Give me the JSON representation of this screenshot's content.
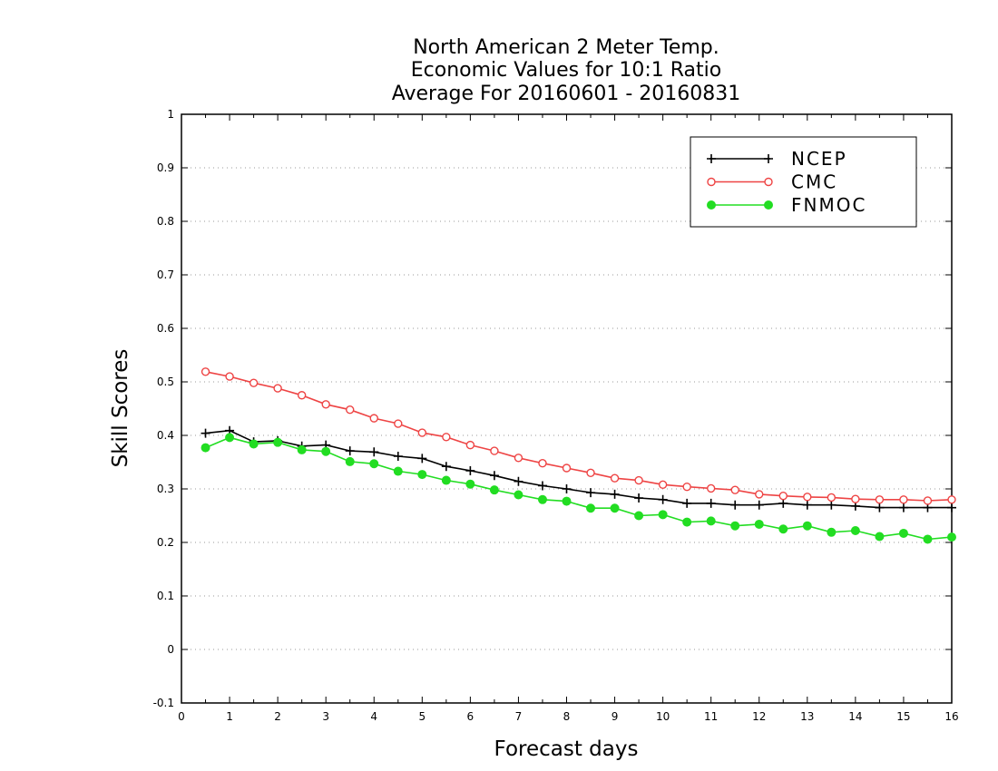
{
  "chart_data": {
    "type": "line",
    "title": [
      "North American 2 Meter Temp.",
      "Economic Values for 10:1 Ratio",
      "Average For 20160601 - 20160831"
    ],
    "xlabel": "Forecast days",
    "ylabel": "Skill Scores",
    "xlim": [
      0,
      16
    ],
    "ylim": [
      -0.1,
      1
    ],
    "xticks": [
      "0",
      "1",
      "2",
      "3",
      "4",
      "5",
      "6",
      "7",
      "8",
      "9",
      "10",
      "11",
      "12",
      "13",
      "14",
      "15",
      "16"
    ],
    "yticks": [
      "-0.1",
      "0",
      "0.1",
      "0.2",
      "0.3",
      "0.4",
      "0.5",
      "0.6",
      "0.7",
      "0.8",
      "0.9",
      "1"
    ],
    "grid": "horizontal dotted",
    "legend_position": "top-right",
    "x": [
      0.5,
      1,
      1.5,
      2,
      2.5,
      3,
      3.5,
      4,
      4.5,
      5,
      5.5,
      6,
      6.5,
      7,
      7.5,
      8,
      8.5,
      9,
      9.5,
      10,
      10.5,
      11,
      11.5,
      12,
      12.5,
      13,
      13.5,
      14,
      14.5,
      15,
      15.5,
      16
    ],
    "series": [
      {
        "name": "NCEP",
        "color": "#000000",
        "marker": "plus",
        "values": [
          0.404,
          0.409,
          0.388,
          0.39,
          0.38,
          0.382,
          0.371,
          0.369,
          0.361,
          0.357,
          0.342,
          0.334,
          0.325,
          0.314,
          0.306,
          0.3,
          0.293,
          0.29,
          0.283,
          0.28,
          0.273,
          0.273,
          0.27,
          0.27,
          0.273,
          0.27,
          0.27,
          0.268,
          0.265,
          0.265,
          0.265,
          0.265
        ]
      },
      {
        "name": "CMC",
        "color": "#ee4444",
        "marker": "open-circle",
        "values": [
          0.519,
          0.51,
          0.498,
          0.488,
          0.475,
          0.458,
          0.448,
          0.432,
          0.422,
          0.405,
          0.397,
          0.382,
          0.371,
          0.358,
          0.348,
          0.339,
          0.33,
          0.32,
          0.316,
          0.308,
          0.304,
          0.301,
          0.298,
          0.29,
          0.287,
          0.285,
          0.284,
          0.281,
          0.28,
          0.28,
          0.278,
          0.28
        ]
      },
      {
        "name": "FNMOC",
        "color": "#22dd22",
        "marker": "filled-circle",
        "values": [
          0.377,
          0.396,
          0.384,
          0.387,
          0.373,
          0.37,
          0.351,
          0.347,
          0.333,
          0.327,
          0.316,
          0.309,
          0.298,
          0.289,
          0.28,
          0.277,
          0.264,
          0.264,
          0.25,
          0.252,
          0.238,
          0.24,
          0.231,
          0.234,
          0.225,
          0.231,
          0.219,
          0.222,
          0.211,
          0.217,
          0.206,
          0.21
        ]
      }
    ]
  }
}
